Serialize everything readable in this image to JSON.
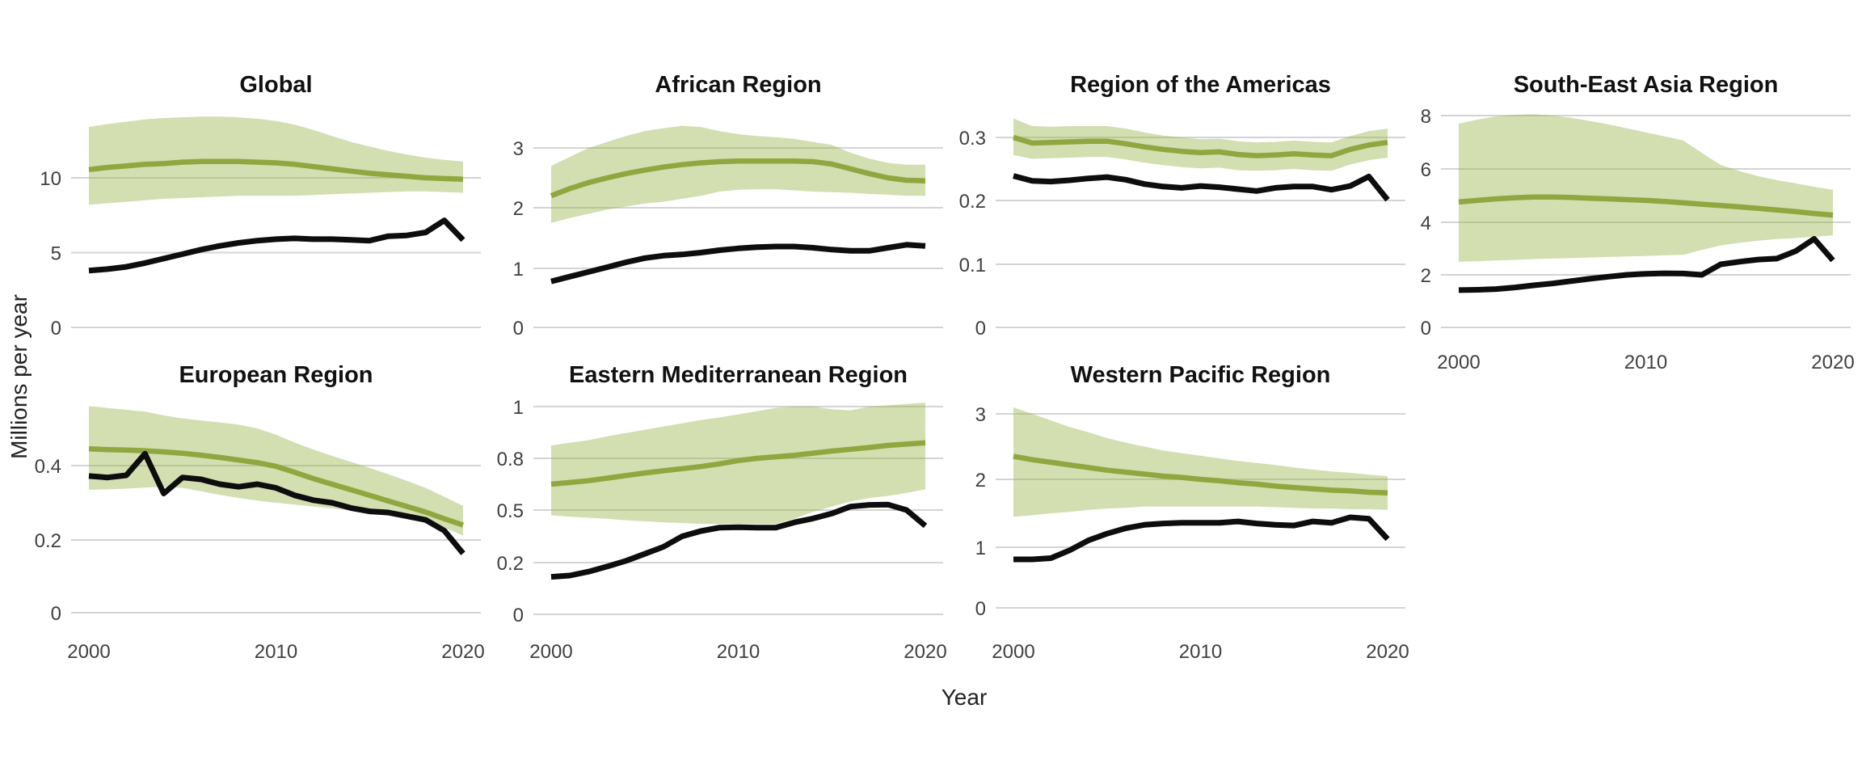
{
  "figure": {
    "background": "#ffffff",
    "colors": {
      "green_line": "#8fa73e",
      "band_fill_rgba": "rgba(150,176,68,0.42)",
      "black_line": "#0d0d0d",
      "gridline": "#d4d4d4",
      "tick_label": "#404040",
      "panel_title": "#111111",
      "axis_title": "#222222"
    }
  },
  "chart_data": {
    "type": "line",
    "xlabel": "Year",
    "ylabel": "Millions per year",
    "x_ticks": [
      "2000",
      "2010",
      "2020"
    ],
    "x_tick_values": [
      2000,
      2010,
      2020
    ],
    "years": [
      2000,
      2001,
      2002,
      2003,
      2004,
      2005,
      2006,
      2007,
      2008,
      2009,
      2010,
      2011,
      2012,
      2013,
      2014,
      2015,
      2016,
      2017,
      2018,
      2019,
      2020
    ],
    "legend": "none",
    "grid": "horizontal-only",
    "panels": [
      {
        "title": "Global",
        "yticks": [
          "0",
          "5",
          "10"
        ],
        "ytick_values": [
          0,
          5,
          10
        ],
        "ylim": [
          0,
          14.5
        ],
        "green": [
          10.55,
          10.7,
          10.8,
          10.9,
          10.95,
          11.05,
          11.1,
          11.1,
          11.1,
          11.05,
          11.0,
          10.9,
          10.75,
          10.6,
          10.45,
          10.3,
          10.2,
          10.1,
          10.0,
          9.95,
          9.9
        ],
        "band_upper": [
          13.4,
          13.6,
          13.75,
          13.9,
          14.0,
          14.05,
          14.1,
          14.1,
          14.05,
          13.95,
          13.8,
          13.55,
          13.2,
          12.8,
          12.4,
          12.1,
          11.8,
          11.55,
          11.35,
          11.2,
          11.1
        ],
        "band_lower": [
          8.2,
          8.3,
          8.4,
          8.5,
          8.6,
          8.65,
          8.7,
          8.75,
          8.8,
          8.8,
          8.8,
          8.8,
          8.85,
          8.9,
          8.95,
          9.0,
          9.05,
          9.1,
          9.1,
          9.05,
          9.0
        ],
        "black": [
          3.8,
          3.9,
          4.05,
          4.3,
          4.6,
          4.9,
          5.2,
          5.45,
          5.65,
          5.8,
          5.9,
          5.95,
          5.9,
          5.9,
          5.85,
          5.8,
          6.1,
          6.15,
          6.35,
          7.15,
          5.85
        ]
      },
      {
        "title": "African Region",
        "yticks": [
          "0",
          "1",
          "2",
          "3"
        ],
        "ytick_values": [
          0,
          1,
          2,
          3
        ],
        "ylim": [
          0,
          3.5
        ],
        "green": [
          2.2,
          2.32,
          2.42,
          2.5,
          2.57,
          2.63,
          2.68,
          2.72,
          2.75,
          2.77,
          2.78,
          2.78,
          2.78,
          2.78,
          2.77,
          2.73,
          2.65,
          2.57,
          2.5,
          2.46,
          2.45
        ],
        "band_upper": [
          2.7,
          2.85,
          3.0,
          3.1,
          3.2,
          3.28,
          3.33,
          3.37,
          3.35,
          3.28,
          3.23,
          3.2,
          3.18,
          3.15,
          3.1,
          3.05,
          2.92,
          2.82,
          2.75,
          2.72,
          2.72
        ],
        "band_lower": [
          1.75,
          1.83,
          1.9,
          1.97,
          2.02,
          2.07,
          2.1,
          2.15,
          2.2,
          2.27,
          2.3,
          2.31,
          2.31,
          2.29,
          2.27,
          2.26,
          2.25,
          2.23,
          2.22,
          2.2,
          2.2
        ],
        "black": [
          0.78,
          0.86,
          0.94,
          1.02,
          1.1,
          1.17,
          1.21,
          1.23,
          1.26,
          1.3,
          1.33,
          1.35,
          1.36,
          1.36,
          1.34,
          1.31,
          1.29,
          1.29,
          1.34,
          1.39,
          1.37
        ]
      },
      {
        "title": "Region of the Americas",
        "yticks": [
          "0",
          "0.1",
          "0.2",
          "0.3"
        ],
        "ytick_values": [
          0,
          0.1,
          0.2,
          0.3
        ],
        "ylim": [
          0,
          0.34
        ],
        "green": [
          0.3,
          0.291,
          0.292,
          0.293,
          0.294,
          0.294,
          0.29,
          0.285,
          0.281,
          0.278,
          0.276,
          0.277,
          0.273,
          0.271,
          0.272,
          0.274,
          0.272,
          0.271,
          0.281,
          0.288,
          0.292
        ],
        "band_upper": [
          0.33,
          0.318,
          0.317,
          0.318,
          0.318,
          0.318,
          0.314,
          0.308,
          0.303,
          0.3,
          0.297,
          0.298,
          0.294,
          0.292,
          0.293,
          0.295,
          0.293,
          0.292,
          0.302,
          0.31,
          0.314
        ],
        "band_lower": [
          0.272,
          0.266,
          0.267,
          0.268,
          0.269,
          0.269,
          0.265,
          0.26,
          0.256,
          0.253,
          0.251,
          0.252,
          0.248,
          0.247,
          0.248,
          0.25,
          0.248,
          0.247,
          0.257,
          0.264,
          0.268
        ],
        "black": [
          0.239,
          0.231,
          0.23,
          0.232,
          0.235,
          0.237,
          0.233,
          0.226,
          0.222,
          0.22,
          0.223,
          0.221,
          0.218,
          0.215,
          0.22,
          0.222,
          0.222,
          0.217,
          0.223,
          0.238,
          0.201
        ]
      },
      {
        "title": "South-East Asia Region",
        "yticks": [
          "0",
          "2",
          "4",
          "6",
          "8"
        ],
        "ytick_values": [
          0,
          2,
          4,
          6,
          8
        ],
        "ylim": [
          0,
          8.3
        ],
        "green": [
          4.76,
          4.82,
          4.88,
          4.92,
          4.95,
          4.95,
          4.93,
          4.9,
          4.88,
          4.85,
          4.82,
          4.78,
          4.73,
          4.68,
          4.63,
          4.58,
          4.52,
          4.46,
          4.4,
          4.33,
          4.27
        ],
        "band_upper": [
          7.7,
          7.85,
          7.97,
          8.03,
          8.05,
          8.0,
          7.92,
          7.8,
          7.67,
          7.52,
          7.37,
          7.22,
          7.07,
          6.6,
          6.15,
          5.92,
          5.73,
          5.58,
          5.46,
          5.33,
          5.22
        ],
        "band_lower": [
          2.5,
          2.52,
          2.55,
          2.57,
          2.6,
          2.62,
          2.64,
          2.66,
          2.68,
          2.7,
          2.72,
          2.74,
          2.76,
          2.95,
          3.12,
          3.22,
          3.3,
          3.36,
          3.4,
          3.45,
          3.5
        ],
        "black": [
          1.42,
          1.43,
          1.46,
          1.52,
          1.6,
          1.67,
          1.76,
          1.85,
          1.93,
          2.0,
          2.04,
          2.06,
          2.05,
          2.0,
          2.4,
          2.5,
          2.58,
          2.62,
          2.9,
          3.37,
          2.55
        ]
      },
      {
        "title": "European Region",
        "yticks": [
          "0",
          "0.2",
          "0.4"
        ],
        "ytick_values": [
          0,
          0.2,
          0.4
        ],
        "ylim": [
          0,
          0.58
        ],
        "green": [
          0.445,
          0.443,
          0.442,
          0.44,
          0.437,
          0.433,
          0.428,
          0.422,
          0.415,
          0.408,
          0.398,
          0.382,
          0.365,
          0.35,
          0.335,
          0.32,
          0.305,
          0.29,
          0.275,
          0.257,
          0.24
        ],
        "band_upper": [
          0.56,
          0.555,
          0.55,
          0.545,
          0.535,
          0.527,
          0.521,
          0.516,
          0.51,
          0.5,
          0.483,
          0.462,
          0.443,
          0.426,
          0.41,
          0.394,
          0.377,
          0.359,
          0.34,
          0.316,
          0.292
        ],
        "band_lower": [
          0.335,
          0.336,
          0.338,
          0.341,
          0.343,
          0.34,
          0.331,
          0.321,
          0.313,
          0.306,
          0.3,
          0.295,
          0.29,
          0.285,
          0.279,
          0.272,
          0.265,
          0.256,
          0.246,
          0.233,
          0.212
        ],
        "black": [
          0.372,
          0.368,
          0.374,
          0.432,
          0.325,
          0.368,
          0.363,
          0.35,
          0.343,
          0.35,
          0.34,
          0.32,
          0.307,
          0.3,
          0.286,
          0.277,
          0.274,
          0.264,
          0.254,
          0.225,
          0.163
        ]
      },
      {
        "title": "Eastern Mediterranean Region",
        "yticks": [
          "0",
          "0.2",
          "0.5",
          "0.8",
          "1"
        ],
        "ytick_values": [
          0,
          0.2,
          0.5,
          0.8,
          1
        ],
        "ylim": [
          0,
          1.05
        ],
        "green": [
          0.65,
          0.66,
          0.67,
          0.685,
          0.7,
          0.715,
          0.728,
          0.74,
          0.752,
          0.768,
          0.787,
          0.8,
          0.806,
          0.812,
          0.82,
          0.828,
          0.835,
          0.842,
          0.85,
          0.855,
          0.86
        ],
        "band_upper": [
          0.85,
          0.86,
          0.87,
          0.885,
          0.898,
          0.91,
          0.923,
          0.935,
          0.948,
          0.958,
          0.97,
          0.982,
          0.995,
          1.0,
          1.0,
          0.99,
          0.985,
          1.0,
          1.005,
          1.01,
          1.015
        ],
        "band_lower": [
          0.47,
          0.462,
          0.456,
          0.45,
          0.442,
          0.436,
          0.43,
          0.426,
          0.421,
          0.42,
          0.42,
          0.42,
          0.421,
          0.45,
          0.49,
          0.52,
          0.55,
          0.57,
          0.582,
          0.6,
          0.62
        ],
        "black": [
          0.145,
          0.15,
          0.165,
          0.185,
          0.21,
          0.25,
          0.29,
          0.35,
          0.38,
          0.4,
          0.402,
          0.4,
          0.4,
          0.43,
          0.452,
          0.48,
          0.52,
          0.53,
          0.532,
          0.5,
          0.41
        ]
      },
      {
        "title": "Western Pacific Region",
        "yticks": [
          "0",
          "1",
          "2",
          "3"
        ],
        "ytick_values": [
          0,
          1,
          2,
          3
        ],
        "ylim": [
          0,
          3.3
        ],
        "green": [
          2.35,
          2.3,
          2.26,
          2.22,
          2.18,
          2.14,
          2.11,
          2.08,
          2.05,
          2.03,
          2.0,
          1.98,
          1.95,
          1.93,
          1.9,
          1.88,
          1.86,
          1.84,
          1.83,
          1.81,
          1.8
        ],
        "band_upper": [
          3.1,
          3.0,
          2.9,
          2.8,
          2.72,
          2.63,
          2.56,
          2.5,
          2.44,
          2.4,
          2.36,
          2.32,
          2.28,
          2.25,
          2.22,
          2.18,
          2.15,
          2.12,
          2.1,
          2.07,
          2.05
        ],
        "band_lower": [
          1.45,
          1.47,
          1.5,
          1.52,
          1.55,
          1.57,
          1.58,
          1.6,
          1.6,
          1.6,
          1.6,
          1.6,
          1.6,
          1.6,
          1.59,
          1.58,
          1.57,
          1.57,
          1.56,
          1.56,
          1.55
        ],
        "black": [
          0.8,
          0.8,
          0.82,
          0.95,
          1.1,
          1.2,
          1.28,
          1.33,
          1.35,
          1.36,
          1.36,
          1.36,
          1.38,
          1.35,
          1.33,
          1.32,
          1.38,
          1.36,
          1.44,
          1.42,
          1.12
        ]
      }
    ]
  }
}
